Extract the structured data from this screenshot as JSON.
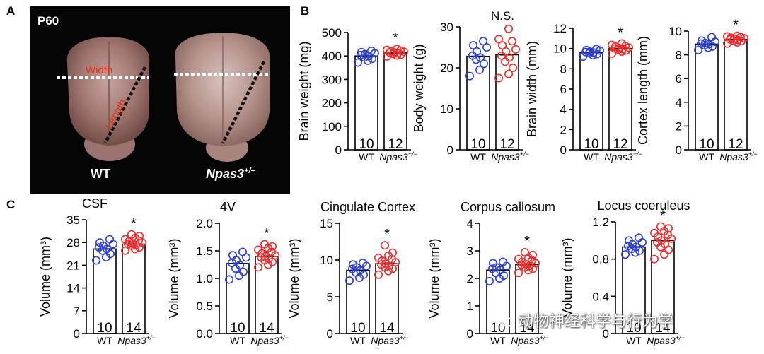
{
  "panels": {
    "a": "A",
    "b": "B",
    "c": "C"
  },
  "photo": {
    "age": "P60",
    "width_label": "Width",
    "length_label": "Length",
    "wt_label": "WT",
    "mut_label": "Npas3",
    "mut_sup": "+/−"
  },
  "groups": {
    "wt": "WT",
    "mut": "Npas3",
    "mut_sup": "+/−"
  },
  "colors": {
    "wt": "#2b3fd4",
    "mut": "#ee2a2a",
    "photo_bg": "#050505",
    "width_line": "#ffffff",
    "length_line": "#111111",
    "label_red": "#e03010"
  },
  "watermark": "动物神经科学与行为学",
  "chart_data": [
    {
      "id": "brain-weight",
      "type": "bar",
      "title": "",
      "ylabel": "Brain weight (mg)",
      "ylim": [
        0,
        500
      ],
      "yticks": [
        0,
        100,
        200,
        300,
        400,
        500
      ],
      "tick_labels": [
        "0",
        "100",
        "200",
        "300",
        "400",
        "500"
      ],
      "categories": [
        "WT",
        "Npas3+/−"
      ],
      "values": [
        400,
        413
      ],
      "n": [
        "10",
        "12"
      ],
      "significance": "*",
      "points": [
        [
          372,
          380,
          388,
          394,
          399,
          404,
          408,
          412,
          416,
          422
        ],
        [
          398,
          402,
          406,
          409,
          412,
          414,
          416,
          418,
          420,
          423,
          426,
          430
        ]
      ]
    },
    {
      "id": "body-weight",
      "type": "bar",
      "title": "",
      "ylabel": "Body weight (g)",
      "ylim": [
        0,
        30
      ],
      "yticks": [
        0,
        10,
        20,
        30
      ],
      "tick_labels": [
        "0",
        "10",
        "20",
        "30"
      ],
      "categories": [
        "WT",
        "Npas3+/−"
      ],
      "values": [
        22.8,
        23.2
      ],
      "n": [
        "10",
        "12"
      ],
      "significance": "N.S.",
      "points": [
        [
          18,
          19.5,
          21,
          22,
          22.5,
          23,
          24,
          25,
          25.5,
          26.5
        ],
        [
          17.5,
          18.5,
          20,
          21.5,
          22.5,
          23,
          24,
          24.5,
          25.5,
          26.5,
          27,
          29.5
        ]
      ]
    },
    {
      "id": "brain-width",
      "type": "bar",
      "title": "",
      "ylabel": "Brain width (mm)",
      "ylim": [
        0,
        12
      ],
      "yticks": [
        0,
        2,
        4,
        6,
        8,
        10,
        12
      ],
      "tick_labels": [
        "0",
        "2",
        "4",
        "6",
        "8",
        "10",
        "12"
      ],
      "categories": [
        "WT",
        "Npas3+/−"
      ],
      "values": [
        9.6,
        10.0
      ],
      "n": [
        "10",
        "12"
      ],
      "significance": "*",
      "points": [
        [
          9.2,
          9.35,
          9.45,
          9.55,
          9.6,
          9.65,
          9.7,
          9.8,
          9.85,
          9.95
        ],
        [
          9.5,
          9.7,
          9.8,
          9.9,
          9.95,
          10.0,
          10.05,
          10.1,
          10.2,
          10.25,
          10.35,
          10.5
        ]
      ]
    },
    {
      "id": "cortex-length",
      "type": "bar",
      "title": "",
      "ylabel": "Cortex length (mm)",
      "ylim": [
        0,
        10
      ],
      "yticks": [
        0,
        2,
        4,
        6,
        8,
        10
      ],
      "tick_labels": [
        "0",
        "2",
        "4",
        "6",
        "8",
        "10"
      ],
      "categories": [
        "WT",
        "Npas3+/−"
      ],
      "values": [
        8.9,
        9.3
      ],
      "n": [
        "10",
        "12"
      ],
      "significance": "*",
      "points": [
        [
          8.4,
          8.6,
          8.7,
          8.8,
          8.9,
          8.95,
          9.0,
          9.1,
          9.2,
          9.5
        ],
        [
          8.95,
          9.05,
          9.15,
          9.2,
          9.25,
          9.3,
          9.35,
          9.4,
          9.45,
          9.5,
          9.55,
          9.6
        ]
      ]
    },
    {
      "id": "csf",
      "type": "bar",
      "title": "CSF",
      "ylabel": "Volume (mm³)",
      "ylim": [
        0,
        35
      ],
      "yticks": [
        0,
        7,
        14,
        21,
        28,
        35
      ],
      "tick_labels": [
        "0",
        "7",
        "14",
        "21",
        "28",
        "35"
      ],
      "categories": [
        "WT",
        "Npas3+/−"
      ],
      "values": [
        26,
        27.5
      ],
      "n": [
        "10",
        "14"
      ],
      "significance": "*",
      "points": [
        [
          22.5,
          23.5,
          24.5,
          25.5,
          26,
          26.5,
          27,
          27.5,
          28,
          29
        ],
        [
          25.5,
          26,
          26.5,
          27,
          27.2,
          27.5,
          27.8,
          28,
          28.3,
          28.6,
          29,
          29.4,
          30,
          30.5
        ]
      ]
    },
    {
      "id": "4v",
      "type": "bar",
      "title": "4V",
      "ylabel": "Volume (mm³)",
      "ylim": [
        0,
        2.0
      ],
      "yticks": [
        0,
        0.5,
        1.0,
        1.5,
        2.0
      ],
      "tick_labels": [
        "0.0",
        "0.5",
        "1.0",
        "1.5",
        "2.0"
      ],
      "categories": [
        "WT",
        "Npas3+/−"
      ],
      "values": [
        1.27,
        1.4
      ],
      "n": [
        "10",
        "14"
      ],
      "significance": "*",
      "points": [
        [
          0.98,
          1.05,
          1.12,
          1.18,
          1.24,
          1.28,
          1.33,
          1.38,
          1.42,
          1.48
        ],
        [
          1.2,
          1.25,
          1.3,
          1.33,
          1.36,
          1.38,
          1.4,
          1.42,
          1.45,
          1.48,
          1.52,
          1.55,
          1.58,
          1.62
        ]
      ]
    },
    {
      "id": "cingulate-cortex",
      "type": "bar",
      "title": "Cingulate Cortex",
      "ylabel": "Volume (mm³)",
      "ylim": [
        0,
        15
      ],
      "yticks": [
        0,
        5,
        10,
        15
      ],
      "tick_labels": [
        "0",
        "5",
        "10",
        "15"
      ],
      "categories": [
        "WT",
        "Npas3+/−"
      ],
      "values": [
        8.6,
        9.5
      ],
      "n": [
        "10",
        "14"
      ],
      "significance": "*",
      "points": [
        [
          7.2,
          7.6,
          8.0,
          8.3,
          8.6,
          8.8,
          9.0,
          9.2,
          9.4,
          9.6
        ],
        [
          8.0,
          8.5,
          8.8,
          9.0,
          9.2,
          9.4,
          9.5,
          9.7,
          9.9,
          10.1,
          10.3,
          10.6,
          11.0,
          12.0
        ]
      ]
    },
    {
      "id": "corpus-callosum",
      "type": "bar",
      "title": "Corpus callosum",
      "ylabel": "Volume (mm³)",
      "ylim": [
        0,
        4
      ],
      "yticks": [
        0,
        1,
        2,
        3,
        4
      ],
      "tick_labels": [
        "0",
        "1",
        "2",
        "3",
        "4"
      ],
      "categories": [
        "WT",
        "Npas3+/−"
      ],
      "values": [
        2.3,
        2.5
      ],
      "n": [
        "10",
        "14"
      ],
      "significance": "*",
      "points": [
        [
          1.9,
          2.0,
          2.1,
          2.2,
          2.3,
          2.35,
          2.4,
          2.45,
          2.55,
          2.6
        ],
        [
          2.2,
          2.3,
          2.35,
          2.4,
          2.45,
          2.5,
          2.52,
          2.55,
          2.6,
          2.65,
          2.7,
          2.75,
          2.85,
          2.95
        ]
      ]
    },
    {
      "id": "locus-coeruleus",
      "type": "bar",
      "title": "Locus coeruleus",
      "ylabel": "Volume (mm³)",
      "ylim": [
        0,
        1.2
      ],
      "yticks": [
        0,
        0.4,
        0.8,
        1.2
      ],
      "tick_labels": [
        "0",
        "0.4",
        "0.8",
        "1.2"
      ],
      "categories": [
        "WT",
        "Npas3+/−"
      ],
      "values": [
        0.93,
        1.0
      ],
      "n": [
        "10",
        "14"
      ],
      "significance": "*",
      "points": [
        [
          0.85,
          0.87,
          0.89,
          0.91,
          0.93,
          0.94,
          0.96,
          0.98,
          1.0,
          1.03
        ],
        [
          0.8,
          0.85,
          0.9,
          0.93,
          0.96,
          0.98,
          1.0,
          1.02,
          1.04,
          1.06,
          1.08,
          1.1,
          1.13,
          1.15
        ]
      ]
    }
  ]
}
